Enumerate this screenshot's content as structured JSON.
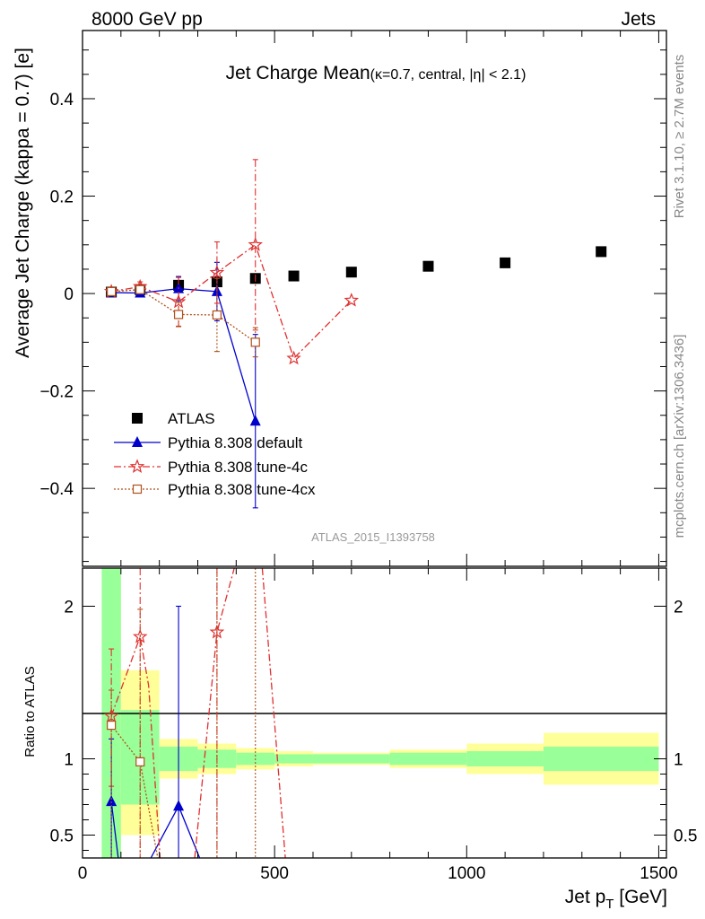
{
  "header": {
    "left": "8000 GeV pp",
    "right": "Jets"
  },
  "side_text": {
    "rivet": "Rivet 3.1.10, ≥ 2.7M events",
    "mcplots": "mcplots.cern.ch [arXiv:1306.3436]"
  },
  "watermark": "ATLAS_2015_I1393758",
  "title": {
    "main": "Jet Charge Mean",
    "sub": "(κ=0.7, central, |η| < 2.1)"
  },
  "colors": {
    "atlas": "#000000",
    "default": "#0000cc",
    "tune4c": "#e03030",
    "tune4cx": "#b0501a",
    "band_inner": "#99ff99",
    "band_outer": "#ffff99"
  },
  "chart_data": [
    {
      "type": "scatter",
      "panel": "main",
      "ylabel": "Average Jet Charge (kappa = 0.7) [e]",
      "xlim": [
        0,
        1520
      ],
      "ylim": [
        -0.56,
        0.54
      ],
      "yticks": [
        -0.4,
        -0.2,
        0,
        0.2,
        0.4
      ],
      "ytick_labels": [
        "−0.4",
        "−0.2",
        "0",
        "0.2",
        "0.4"
      ],
      "legend_position": "lower-left",
      "series": [
        {
          "name": "ATLAS",
          "style": "data",
          "x": [
            75,
            150,
            250,
            350,
            450,
            550,
            700,
            900,
            1100,
            1350
          ],
          "y": [
            0.003,
            0.008,
            0.017,
            0.024,
            0.031,
            0.036,
            0.044,
            0.056,
            0.063,
            0.086
          ]
        },
        {
          "name": "Pythia 8.308 default",
          "style": "default",
          "x": [
            75,
            150,
            250,
            350,
            450
          ],
          "y": [
            0.002,
            0.001,
            0.01,
            0.004,
            -0.262
          ],
          "err": [
            0.004,
            0.008,
            0.025,
            0.06,
            0.178
          ]
        },
        {
          "name": "Pythia 8.308 tune-4c",
          "style": "tune4c",
          "x": [
            75,
            150,
            250,
            350,
            450,
            550,
            700
          ],
          "y": [
            0.004,
            0.014,
            -0.017,
            0.043,
            0.1,
            -0.133,
            -0.014
          ],
          "err": [
            0.004,
            0.01,
            0.05,
            0.063,
            0.175,
            0,
            0
          ]
        },
        {
          "name": "Pythia 8.308 tune-4cx",
          "style": "tune4cx",
          "x": [
            75,
            150,
            250,
            350,
            450
          ],
          "y": [
            0.004,
            0.008,
            -0.043,
            -0.044,
            -0.1
          ],
          "err": [
            0.004,
            0.008,
            0.025,
            0.075,
            0.03
          ]
        }
      ]
    },
    {
      "type": "scatter",
      "panel": "ratio",
      "ylabel": "Ratio to ATLAS",
      "xlabel": "Jet p_T [GeV]",
      "xlim": [
        0,
        1520
      ],
      "ylim": [
        0.35,
        2.25
      ],
      "xticks": [
        0,
        500,
        1000,
        1500
      ],
      "xtick_labels": [
        "0",
        "500",
        "1000",
        "1500"
      ],
      "yticks": [
        0.5,
        1,
        2
      ],
      "ytick_labels": [
        "0.5",
        "1",
        "2"
      ],
      "bands": {
        "edges": [
          50,
          100,
          200,
          300,
          400,
          500,
          600,
          800,
          1000,
          1200,
          1500
        ],
        "inner_lo": [
          0.0,
          0.7,
          0.92,
          0.94,
          0.96,
          0.97,
          0.97,
          0.96,
          0.95,
          0.92
        ],
        "inner_hi": [
          2.25,
          1.32,
          1.08,
          1.06,
          1.04,
          1.03,
          1.03,
          1.04,
          1.05,
          1.08
        ],
        "outer_lo": [
          0.0,
          0.5,
          0.87,
          0.9,
          0.93,
          0.95,
          0.96,
          0.94,
          0.9,
          0.83
        ],
        "outer_hi": [
          2.25,
          1.58,
          1.13,
          1.1,
          1.07,
          1.05,
          1.04,
          1.06,
          1.1,
          1.17
        ]
      },
      "series": [
        {
          "name": "Pythia 8.308 default",
          "style": "default",
          "x": [
            75,
            250
          ],
          "y": [
            0.72,
            0.69
          ],
          "err_lo": [
            0.0,
            0.0
          ],
          "err_hi": [
            1.13,
            2.0
          ],
          "segments": [
            [
              [
                75,
                0.72
              ],
              [
                93,
                0.35
              ]
            ],
            [
              [
                178,
                0.35
              ],
              [
                250,
                0.69
              ],
              [
                305,
                0.35
              ]
            ]
          ]
        },
        {
          "name": "Pythia 8.308 tune-4c",
          "style": "tune4c",
          "x": [
            75,
            150,
            350
          ],
          "y": [
            1.28,
            1.8,
            1.83
          ],
          "err_lo": [
            0.82,
            0.0,
            0.0
          ],
          "err_hi": [
            1.72,
            2.25,
            2.25
          ],
          "segments": [
            [
              [
                75,
                1.28
              ],
              [
                150,
                1.8
              ],
              [
                172,
                1.48
              ],
              [
                202,
                0.35
              ]
            ],
            [
              [
                292,
                0.35
              ],
              [
                350,
                1.83
              ],
              [
                395,
                2.25
              ]
            ],
            [
              [
                468,
                2.25
              ],
              [
                528,
                0.35
              ]
            ]
          ]
        },
        {
          "name": "Pythia 8.308 tune-4cx",
          "style": "tune4cx",
          "x": [
            75,
            150
          ],
          "y": [
            1.22,
            0.98
          ],
          "err_lo": [
            0.35,
            0.35
          ],
          "err_hi": [
            1.45,
            1.98
          ],
          "segments": [
            [
              [
                75,
                1.22
              ],
              [
                150,
                0.98
              ],
              [
                196,
                0.35
              ]
            ]
          ],
          "vlines": [
            350,
            450
          ]
        }
      ]
    }
  ]
}
